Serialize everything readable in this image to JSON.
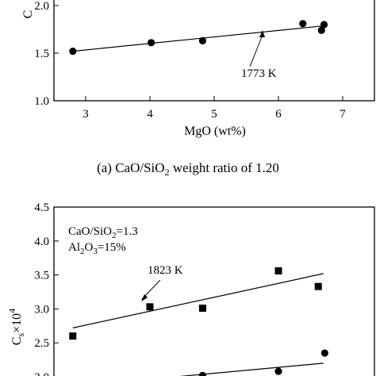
{
  "chart_data": [
    {
      "type": "scatter",
      "panel": "top",
      "ylabel": "C",
      "xlabel": "MgO (wt%)",
      "xlim": [
        2.5,
        7.5
      ],
      "ylim": [
        1.0,
        2.2
      ],
      "xticks": [
        3,
        4,
        5,
        6,
        7
      ],
      "yticks": [
        1.0,
        1.5,
        2.0
      ],
      "xtick_labels": [
        "3",
        "4",
        "5",
        "6",
        "7"
      ],
      "ytick_labels": [
        "1.0",
        "1.5",
        "2.0"
      ],
      "marker": "circle",
      "series": [
        {
          "points": [
            {
              "x": 2.8,
              "y": 1.52
            },
            {
              "x": 4.02,
              "y": 1.61
            },
            {
              "x": 4.82,
              "y": 1.63
            },
            {
              "x": 6.38,
              "y": 1.81
            },
            {
              "x": 6.67,
              "y": 1.74
            },
            {
              "x": 6.71,
              "y": 1.8
            }
          ],
          "fit": {
            "x": [
              2.8,
              6.75
            ],
            "y": [
              1.52,
              1.79
            ]
          },
          "label": "1773 K"
        }
      ],
      "caption": {
        "prefix": "(a)  CaO/SiO",
        "sub": "2",
        "suffix": " weight ratio of 1.20"
      }
    },
    {
      "type": "scatter",
      "panel": "bottom",
      "ylabel": {
        "base": "C",
        "sub": "s",
        "mid": "×10",
        "sup": "4"
      },
      "xlim": [
        2.5,
        7.5
      ],
      "ylim": [
        2.0,
        4.5
      ],
      "yticks": [
        2.0,
        2.5,
        3.0,
        3.5,
        4.0,
        4.5
      ],
      "ytick_labels": [
        "2.0",
        "2.5",
        "3.0",
        "3.5",
        "4.0",
        "4.5"
      ],
      "legend_text": [
        {
          "base": "CaO/SiO",
          "sub": "2",
          "suffix": "=1.3"
        },
        {
          "base": "Al",
          "sub": "2",
          "mid": "O",
          "sub2": "3",
          "suffix": "=15%"
        }
      ],
      "series": [
        {
          "marker": "square",
          "label": "1823 K",
          "points": [
            {
              "x": 2.8,
              "y": 2.6
            },
            {
              "x": 4.0,
              "y": 3.03
            },
            {
              "x": 4.82,
              "y": 3.01
            },
            {
              "x": 6.0,
              "y": 3.56
            },
            {
              "x": 6.62,
              "y": 3.33
            }
          ],
          "fit": {
            "x": [
              2.8,
              6.7
            ],
            "y": [
              2.72,
              3.52
            ]
          }
        },
        {
          "marker": "circle",
          "points": [
            {
              "x": 4.82,
              "y": 2.02
            },
            {
              "x": 6.0,
              "y": 2.08
            },
            {
              "x": 6.72,
              "y": 2.35
            }
          ],
          "fit": {
            "x": [
              3.6,
              6.7
            ],
            "y": [
              1.93,
              2.2
            ]
          }
        }
      ]
    }
  ]
}
